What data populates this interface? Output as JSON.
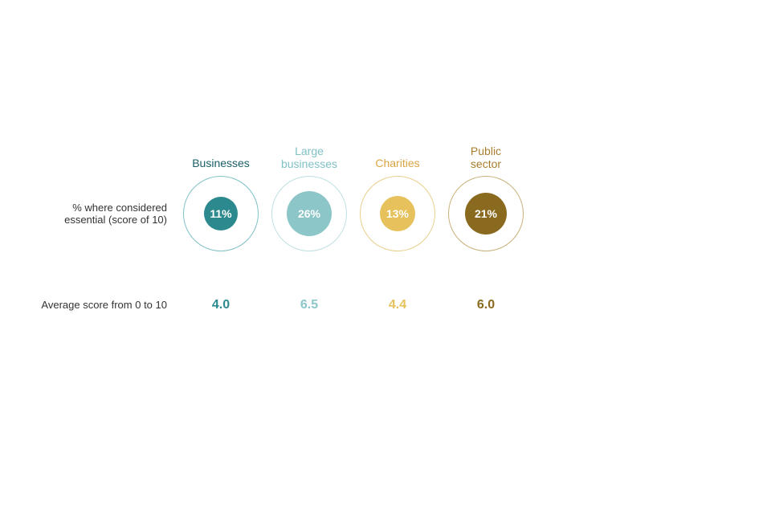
{
  "chart": {
    "type": "infographic",
    "background_color": "#ffffff",
    "row1_label": "% where considered essential (score of 10)",
    "row2_label": "Average score from 0 to 10",
    "outer_diameter": 94,
    "outer_border_width": 1,
    "label_fontsize": 14,
    "rowlabel_fontsize": 13,
    "rowlabel_color": "#333333",
    "value_fontsize": 14,
    "score_fontsize": 16,
    "categories": [
      {
        "id": "businesses",
        "label": "Businesses",
        "label_color": "#1a5e66",
        "percent_label": "11%",
        "percent_value": 11,
        "inner_diameter": 42,
        "inner_fill": "#2c8a8f",
        "outer_border_color": "#7fc1c5",
        "score_label": "4.0",
        "score_color": "#2c8a8f"
      },
      {
        "id": "large-businesses",
        "label": "Large businesses",
        "label_color": "#7fc1c5",
        "percent_label": "26%",
        "percent_value": 26,
        "inner_diameter": 56,
        "inner_fill": "#8cc6c9",
        "outer_border_color": "#bfe0e2",
        "score_label": "6.5",
        "score_color": "#8cc6c9"
      },
      {
        "id": "charities",
        "label": "Charities",
        "label_color": "#d9a441",
        "percent_label": "13%",
        "percent_value": 13,
        "inner_diameter": 44,
        "inner_fill": "#e6c15c",
        "outer_border_color": "#e8cf8c",
        "score_label": "4.4",
        "score_color": "#e6c15c"
      },
      {
        "id": "public-sector",
        "label": "Public sector",
        "label_color": "#a87e2b",
        "percent_label": "21%",
        "percent_value": 21,
        "inner_diameter": 52,
        "inner_fill": "#8a6a1f",
        "outer_border_color": "#c9b07a",
        "score_label": "6.0",
        "score_color": "#8a6a1f"
      }
    ]
  }
}
